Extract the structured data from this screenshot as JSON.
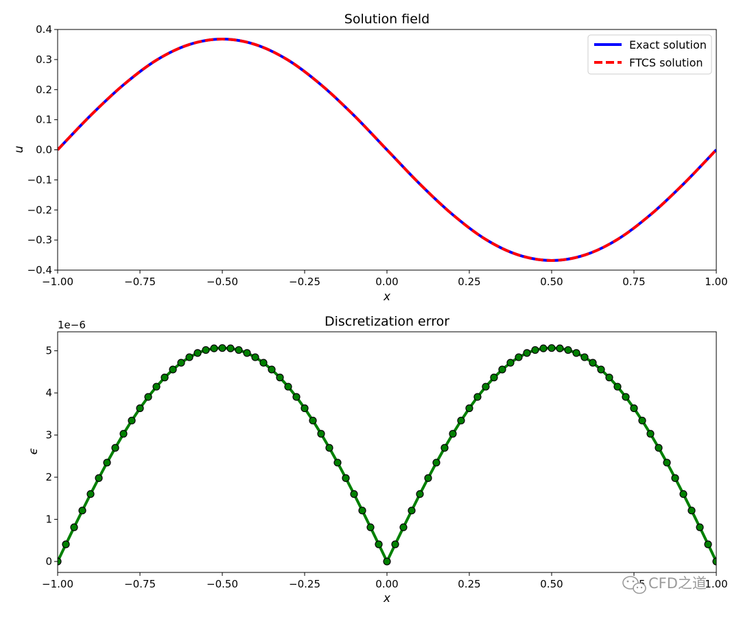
{
  "chart_data": [
    {
      "type": "line",
      "title": "Solution field",
      "xlabel": "x",
      "ylabel": "u",
      "xlim": [
        -1.0,
        1.0
      ],
      "ylim": [
        -0.4,
        0.4
      ],
      "x_ticks": [
        "−1.00",
        "−0.75",
        "−0.50",
        "−0.25",
        "0.00",
        "0.25",
        "0.50",
        "0.75",
        "1.00"
      ],
      "y_ticks": [
        "−0.4",
        "−0.3",
        "−0.2",
        "−0.1",
        "0.0",
        "0.1",
        "0.2",
        "0.3",
        "0.4"
      ],
      "legend_position": "top-right",
      "series": [
        {
          "name": "Exact solution",
          "color": "#0000ff",
          "style": "solid",
          "x": [
            -1.0,
            -0.9,
            -0.8,
            -0.7,
            -0.6,
            -0.5,
            -0.4,
            -0.3,
            -0.2,
            -0.1,
            0.0,
            0.1,
            0.2,
            0.3,
            0.4,
            0.5,
            0.6,
            0.7,
            0.8,
            0.9,
            1.0
          ],
          "y": [
            0.0,
            0.114,
            0.216,
            0.298,
            0.35,
            0.368,
            0.35,
            0.298,
            0.216,
            0.114,
            0.0,
            -0.114,
            -0.216,
            -0.298,
            -0.35,
            -0.368,
            -0.35,
            -0.298,
            -0.216,
            -0.114,
            0.0
          ]
        },
        {
          "name": "FTCS solution",
          "color": "#ff0000",
          "style": "dashed",
          "x": [
            -1.0,
            -0.9,
            -0.8,
            -0.7,
            -0.6,
            -0.5,
            -0.4,
            -0.3,
            -0.2,
            -0.1,
            0.0,
            0.1,
            0.2,
            0.3,
            0.4,
            0.5,
            0.6,
            0.7,
            0.8,
            0.9,
            1.0
          ],
          "y": [
            0.0,
            0.114,
            0.216,
            0.298,
            0.35,
            0.368,
            0.35,
            0.298,
            0.216,
            0.114,
            0.0,
            -0.114,
            -0.216,
            -0.298,
            -0.35,
            -0.368,
            -0.35,
            -0.298,
            -0.216,
            -0.114,
            0.0
          ]
        }
      ]
    },
    {
      "type": "line",
      "title": "Discretization error",
      "xlabel": "x",
      "ylabel": "ϵ",
      "y_offset_text": "1e−6",
      "xlim": [
        -1.0,
        1.0
      ],
      "ylim": [
        -0.26,
        5.45
      ],
      "x_ticks": [
        "−1.00",
        "−0.75",
        "−0.50",
        "−0.25",
        "0.00",
        "0.25",
        "0.50",
        "0.75",
        "1.00"
      ],
      "y_ticks": [
        "0",
        "1",
        "2",
        "3",
        "4",
        "5"
      ],
      "series": [
        {
          "color": "#008000",
          "marker": "circle",
          "marker_edge": "#000000",
          "x": [
            -1.0,
            -0.975,
            -0.95,
            -0.925,
            -0.9,
            -0.875,
            -0.85,
            -0.825,
            -0.8,
            -0.775,
            -0.75,
            -0.725,
            -0.7,
            -0.675,
            -0.65,
            -0.625,
            -0.6,
            -0.575,
            -0.55,
            -0.525,
            -0.5,
            -0.475,
            -0.45,
            -0.425,
            -0.4,
            -0.375,
            -0.35,
            -0.325,
            -0.3,
            -0.275,
            -0.25,
            -0.225,
            -0.2,
            -0.175,
            -0.15,
            -0.125,
            -0.1,
            -0.075,
            -0.05,
            -0.025,
            0.0,
            0.025,
            0.05,
            0.075,
            0.1,
            0.125,
            0.15,
            0.175,
            0.2,
            0.225,
            0.25,
            0.275,
            0.3,
            0.325,
            0.35,
            0.375,
            0.4,
            0.425,
            0.45,
            0.475,
            0.5,
            0.525,
            0.55,
            0.575,
            0.6,
            0.625,
            0.65,
            0.675,
            0.7,
            0.725,
            0.75,
            0.775,
            0.8,
            0.825,
            0.85,
            0.875,
            0.9,
            0.925,
            0.95,
            0.975,
            1.0
          ],
          "y": [
            0.0,
            0.407,
            0.811,
            1.209,
            1.6,
            1.979,
            2.346,
            2.697,
            3.03,
            3.344,
            3.636,
            3.905,
            4.148,
            4.366,
            4.555,
            4.716,
            4.847,
            4.948,
            5.018,
            5.057,
            5.065,
            5.057,
            5.018,
            4.948,
            4.847,
            4.716,
            4.555,
            4.366,
            4.148,
            3.905,
            3.636,
            3.344,
            3.03,
            2.697,
            2.346,
            1.979,
            1.6,
            1.209,
            0.811,
            0.407,
            0.0,
            0.407,
            0.811,
            1.209,
            1.6,
            1.979,
            2.346,
            2.697,
            3.03,
            3.344,
            3.636,
            3.905,
            4.148,
            4.366,
            4.555,
            4.716,
            4.847,
            4.948,
            5.018,
            5.057,
            5.065,
            5.057,
            5.018,
            4.948,
            4.847,
            4.716,
            4.555,
            4.366,
            4.148,
            3.905,
            3.636,
            3.344,
            3.03,
            2.697,
            2.346,
            1.979,
            1.6,
            1.209,
            0.811,
            0.407,
            0.0
          ]
        }
      ]
    }
  ],
  "watermark": {
    "text": "CFD之道",
    "icon": "wechat-icon"
  }
}
